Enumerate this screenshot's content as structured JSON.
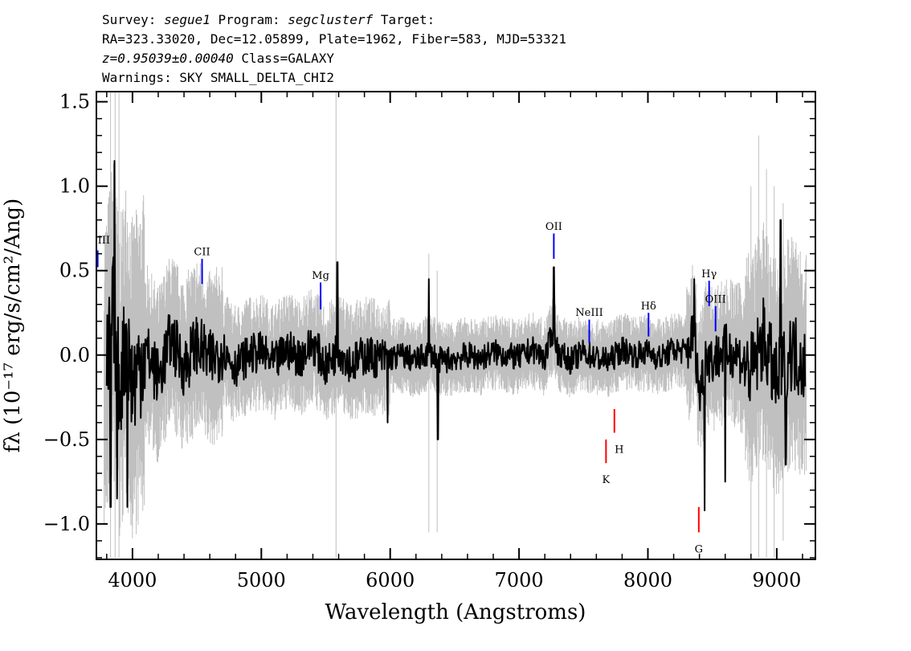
{
  "header": {
    "survey_label": "Survey:",
    "survey": "segue1",
    "program_label": "Program:",
    "program": "segclusterf",
    "target_label": "Target:",
    "line2": "RA=323.33020, Dec=12.05899, Plate=1962, Fiber=583, MJD=53321",
    "redshift": "z=0.95039±0.00040",
    "class": "Class=GALAXY",
    "warnings": "Warnings: SKY SMALL_DELTA_CHI2"
  },
  "chart_data": {
    "type": "line",
    "xlabel": "Wavelength (Angstroms)",
    "ylabel": "fλ (10⁻¹⁷ erg/s/cm²/Ang)",
    "xlim": [
      3720,
      9300
    ],
    "ylim": [
      -1.21,
      1.56
    ],
    "xticks": [
      4000,
      5000,
      6000,
      7000,
      8000,
      9000
    ],
    "xtick_labels": [
      "4000",
      "5000",
      "6000",
      "7000",
      "8000",
      "9000"
    ],
    "yticks": [
      -1.0,
      -0.5,
      0.0,
      0.5,
      1.0,
      1.5
    ],
    "ytick_labels": [
      "−1.0",
      "−0.5",
      "0.0",
      "0.5",
      "1.0",
      "1.5"
    ],
    "colors": {
      "flux": "#000000",
      "error": "#c0c0c0",
      "emission": "#0000ff",
      "absorption": "#ff0000"
    },
    "series": [
      {
        "role": "flux",
        "x": [
          3800,
          3850,
          3900,
          3950,
          4000,
          4100,
          4200,
          4300,
          4400,
          4500,
          4600,
          4700,
          4800,
          4900,
          5000,
          5100,
          5200,
          5300,
          5400,
          5500,
          5600,
          5700,
          5800,
          5900,
          6000,
          6100,
          6200,
          6300,
          6400,
          6500,
          6600,
          6700,
          6800,
          6900,
          7000,
          7100,
          7200,
          7270,
          7300,
          7400,
          7500,
          7600,
          7700,
          7800,
          7900,
          8000,
          8100,
          8200,
          8300,
          8360,
          8400,
          8450,
          8500,
          8600,
          8700,
          8800,
          8900,
          9000,
          9100,
          9200
        ],
        "y": [
          -0.3,
          0.8,
          -0.6,
          0.3,
          -0.5,
          0.1,
          -0.4,
          0.3,
          -0.2,
          0.2,
          -0.1,
          0.1,
          -0.2,
          0.0,
          0.05,
          -0.15,
          0.1,
          -0.05,
          0.2,
          -0.2,
          0.1,
          -0.15,
          0.0,
          -0.05,
          -0.05,
          0.0,
          -0.1,
          0.05,
          -0.1,
          -0.05,
          0.0,
          -0.05,
          0.05,
          0.0,
          -0.05,
          0.1,
          -0.05,
          0.45,
          0.05,
          -0.1,
          0.05,
          -0.05,
          -0.1,
          0.1,
          0.0,
          0.05,
          -0.05,
          0.1,
          0.05,
          0.4,
          -0.7,
          0.05,
          -0.1,
          0.1,
          0.0,
          -0.3,
          0.3,
          -0.5,
          0.1,
          -0.1
        ]
      }
    ],
    "lines": [
      {
        "label": "III",
        "x": 3730,
        "type": "emission"
      },
      {
        "label": "CII",
        "x": 4540,
        "type": "emission"
      },
      {
        "label": "Mg",
        "x": 5460,
        "type": "emission"
      },
      {
        "label": "OII",
        "x": 7270,
        "type": "emission"
      },
      {
        "label": "NeIII",
        "x": 7545,
        "type": "emission"
      },
      {
        "label": "Hδ",
        "x": 8005,
        "type": "emission"
      },
      {
        "label": "Hγ",
        "x": 8475,
        "type": "emission"
      },
      {
        "label": "OIII",
        "x": 8525,
        "type": "emission"
      },
      {
        "label": "K",
        "x": 7675,
        "type": "absorption"
      },
      {
        "label": "H",
        "x": 7740,
        "type": "absorption"
      },
      {
        "label": "G",
        "x": 8395,
        "type": "absorption"
      }
    ]
  }
}
